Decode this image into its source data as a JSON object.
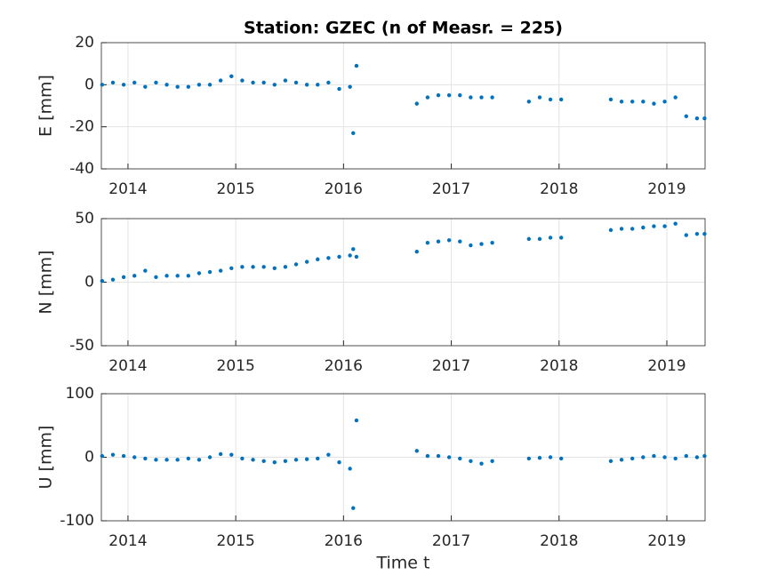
{
  "chart_data": [
    {
      "type": "scatter",
      "title": "Station: GZEC (n of Measr. = 225)",
      "ylabel": "E [mm]",
      "color": "#0072bd",
      "grid": true,
      "xlim": [
        2013.753,
        2019.355
      ],
      "xticks": [
        2014,
        2015,
        2016,
        2017,
        2018,
        2019
      ],
      "ylim": [
        -40,
        20
      ],
      "yticks": [
        -40,
        -20,
        0,
        20
      ],
      "x": [
        2013.76,
        2013.86,
        2013.96,
        2014.06,
        2014.16,
        2014.26,
        2014.36,
        2014.46,
        2014.56,
        2014.66,
        2014.76,
        2014.86,
        2014.96,
        2015.06,
        2015.16,
        2015.26,
        2015.36,
        2015.46,
        2015.56,
        2015.66,
        2015.76,
        2015.86,
        2015.96,
        2016.06,
        2016.12,
        2016.09,
        2016.68,
        2016.78,
        2016.88,
        2016.98,
        2017.08,
        2017.18,
        2017.28,
        2017.38,
        2017.72,
        2017.82,
        2017.92,
        2018.02,
        2018.48,
        2018.58,
        2018.68,
        2018.78,
        2018.88,
        2018.98,
        2019.08,
        2019.18,
        2019.28,
        2019.35
      ],
      "values": [
        0,
        1,
        0,
        1,
        -1,
        1,
        0,
        -1,
        -1,
        0,
        0,
        2,
        4,
        2,
        1,
        1,
        0,
        2,
        1,
        0,
        0,
        1,
        -2,
        -1,
        9,
        -23,
        -9,
        -6,
        -5,
        -5,
        -5,
        -6,
        -6,
        -6,
        -8,
        -6,
        -7,
        -7,
        -7,
        -8,
        -8,
        -8,
        -9,
        -8,
        -6,
        -15,
        -16,
        -16
      ]
    },
    {
      "type": "scatter",
      "ylabel": "N [mm]",
      "color": "#0072bd",
      "grid": true,
      "xlim": [
        2013.753,
        2019.355
      ],
      "xticks": [
        2014,
        2015,
        2016,
        2017,
        2018,
        2019
      ],
      "ylim": [
        -50,
        50
      ],
      "yticks": [
        -50,
        0,
        50
      ],
      "x": [
        2013.76,
        2013.86,
        2013.96,
        2014.06,
        2014.16,
        2014.26,
        2014.36,
        2014.46,
        2014.56,
        2014.66,
        2014.76,
        2014.86,
        2014.96,
        2015.06,
        2015.16,
        2015.26,
        2015.36,
        2015.46,
        2015.56,
        2015.66,
        2015.76,
        2015.86,
        2015.96,
        2016.06,
        2016.12,
        2016.09,
        2016.68,
        2016.78,
        2016.88,
        2016.98,
        2017.08,
        2017.18,
        2017.28,
        2017.38,
        2017.72,
        2017.82,
        2017.92,
        2018.02,
        2018.48,
        2018.58,
        2018.68,
        2018.78,
        2018.88,
        2018.98,
        2019.08,
        2019.18,
        2019.28,
        2019.35
      ],
      "values": [
        1,
        2,
        4,
        5,
        9,
        4,
        5,
        5,
        5,
        7,
        8,
        9,
        11,
        12,
        12,
        12,
        11,
        12,
        14,
        16,
        18,
        19,
        20,
        21,
        20,
        26,
        24,
        31,
        32,
        33,
        32,
        29,
        30,
        31,
        34,
        34,
        35,
        35,
        41,
        42,
        42,
        43,
        44,
        44,
        46,
        37,
        38,
        38
      ]
    },
    {
      "type": "scatter",
      "ylabel": "U [mm]",
      "xlabel": "Time t",
      "color": "#0072bd",
      "grid": true,
      "xlim": [
        2013.753,
        2019.355
      ],
      "xticks": [
        2014,
        2015,
        2016,
        2017,
        2018,
        2019
      ],
      "ylim": [
        -100,
        100
      ],
      "yticks": [
        -100,
        0,
        100
      ],
      "x": [
        2013.76,
        2013.86,
        2013.96,
        2014.06,
        2014.16,
        2014.26,
        2014.36,
        2014.46,
        2014.56,
        2014.66,
        2014.76,
        2014.86,
        2014.96,
        2015.06,
        2015.16,
        2015.26,
        2015.36,
        2015.46,
        2015.56,
        2015.66,
        2015.76,
        2015.86,
        2015.96,
        2016.06,
        2016.12,
        2016.09,
        2016.68,
        2016.78,
        2016.88,
        2016.98,
        2017.08,
        2017.18,
        2017.28,
        2017.38,
        2017.72,
        2017.82,
        2017.92,
        2018.02,
        2018.48,
        2018.58,
        2018.68,
        2018.78,
        2018.88,
        2018.98,
        2019.08,
        2019.18,
        2019.28,
        2019.35
      ],
      "values": [
        2,
        4,
        2,
        0,
        -2,
        -4,
        -4,
        -4,
        -2,
        -4,
        0,
        5,
        4,
        -2,
        -4,
        -6,
        -8,
        -6,
        -4,
        -3,
        -2,
        4,
        -8,
        -18,
        58,
        -80,
        10,
        2,
        2,
        0,
        -2,
        -6,
        -10,
        -6,
        -2,
        -1,
        0,
        -2,
        -6,
        -4,
        -2,
        0,
        2,
        0,
        -2,
        2,
        0,
        2
      ]
    }
  ]
}
